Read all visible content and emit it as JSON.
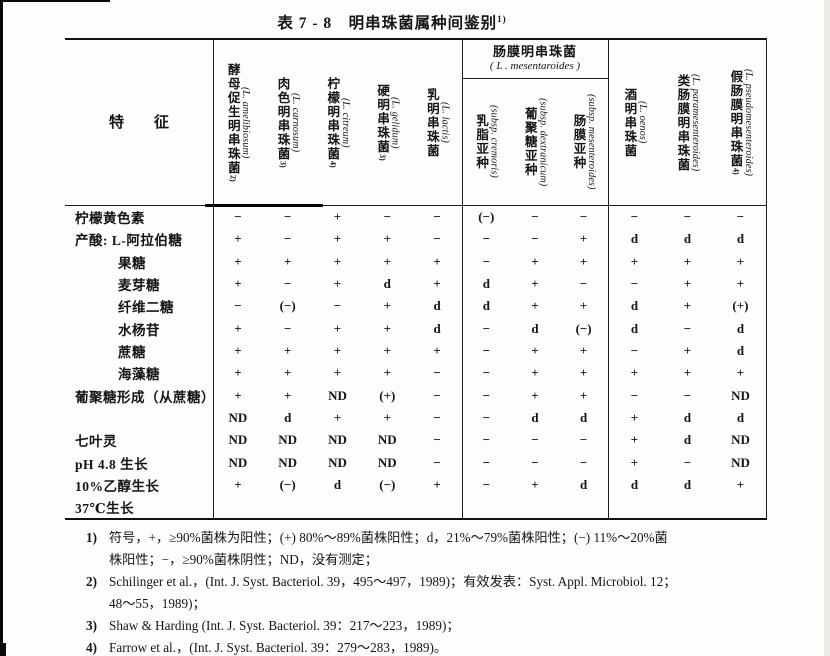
{
  "title": {
    "text": "表 7 - 8　明串珠菌属种间鉴别",
    "superscript": "1)"
  },
  "table": {
    "feature_header": "特　　征",
    "group_header": {
      "cn": "肠膜明串珠菌",
      "latin": "( L .  mesentaroides )"
    },
    "columns": [
      {
        "cn": "酵母促生明串珠菌",
        "sup": "2)",
        "latin": "(L. amelibiosum)",
        "group": false
      },
      {
        "cn": "肉色明串珠菌",
        "sup": "3)",
        "latin": "(L. carnosum)",
        "group": false
      },
      {
        "cn": "柠檬明串珠菌",
        "sup": "4)",
        "latin": "(L. citreum)",
        "group": false
      },
      {
        "cn": "硬明串珠菌",
        "sup": "3)",
        "latin": "(L. gelidum)",
        "group": false
      },
      {
        "cn": "乳明串珠菌",
        "sup": "",
        "latin": "(L. lactis)",
        "group": false
      },
      {
        "cn": "乳脂亚种",
        "sup": "",
        "latin": "(subsp. cremoris)",
        "group": true
      },
      {
        "cn": "葡聚糖亚种",
        "sup": "",
        "latin": "(subsp. dextranicum)",
        "group": true
      },
      {
        "cn": "肠膜亚种",
        "sup": "",
        "latin": "(subsp. mesenteroides)",
        "group": true
      },
      {
        "cn": "酒明串珠菌",
        "sup": "",
        "latin": "(L. oenos)",
        "group": false
      },
      {
        "cn": "类肠膜明串珠菌",
        "sup": "",
        "latin": "(L. paramesenteroides)",
        "group": false
      },
      {
        "cn": "假肠膜明串珠菌",
        "sup": "4)",
        "latin": "(L. pseudomesenteroides)",
        "group": false
      }
    ],
    "rows": [
      {
        "label": "柠檬黄色素",
        "indent": 0,
        "values": [
          "−",
          "−",
          "+",
          "−",
          "−",
          "(−)",
          "−",
          "−",
          "−",
          "−",
          "−"
        ]
      },
      {
        "label": "产酸: L-阿拉伯糖",
        "indent": 0,
        "values": [
          "+",
          "−",
          "+",
          "+",
          "−",
          "−",
          "−",
          "+",
          "d",
          "d",
          "d"
        ]
      },
      {
        "label": "果糖",
        "indent": 1,
        "values": [
          "+",
          "+",
          "+",
          "+",
          "+",
          "−",
          "+",
          "+",
          "+",
          "+",
          "+"
        ]
      },
      {
        "label": "麦芽糖",
        "indent": 1,
        "values": [
          "+",
          "−",
          "+",
          "d",
          "+",
          "d",
          "+",
          "−",
          "−",
          "+",
          "+"
        ]
      },
      {
        "label": "纤维二糖",
        "indent": 1,
        "values": [
          "−",
          "(−)",
          "−",
          "+",
          "d",
          "d",
          "+",
          "+",
          "d",
          "+",
          "(+)"
        ]
      },
      {
        "label": "水杨苷",
        "indent": 1,
        "values": [
          "+",
          "−",
          "+",
          "+",
          "d",
          "−",
          "d",
          "(−)",
          "d",
          "−",
          "d"
        ]
      },
      {
        "label": "蔗糖",
        "indent": 1,
        "values": [
          "+",
          "+",
          "+",
          "+",
          "+",
          "−",
          "+",
          "+",
          "−",
          "+",
          "d"
        ]
      },
      {
        "label": "海藻糖",
        "indent": 1,
        "values": [
          "+",
          "+",
          "+",
          "+",
          "−",
          "−",
          "+",
          "+",
          "+",
          "+",
          "+"
        ]
      },
      {
        "label": "葡聚糖形成（从蔗糖）",
        "indent": 0,
        "values": [
          "+",
          "+",
          "ND",
          "(+)",
          "−",
          "−",
          "+",
          "+",
          "−",
          "−",
          "ND"
        ]
      },
      {
        "label": "",
        "indent": 0,
        "values": [
          "ND",
          "d",
          "+",
          "+",
          "−",
          "−",
          "d",
          "d",
          "+",
          "d",
          "d"
        ]
      },
      {
        "label": "七叶灵",
        "indent": 0,
        "values": [
          "ND",
          "ND",
          "ND",
          "ND",
          "−",
          "−",
          "−",
          "−",
          "+",
          "d",
          "ND"
        ]
      },
      {
        "label": "pH 4.8 生长",
        "indent": 0,
        "values": [
          "ND",
          "ND",
          "ND",
          "ND",
          "−",
          "−",
          "−",
          "−",
          "+",
          "−",
          "ND"
        ]
      },
      {
        "label": "10%乙醇生长",
        "indent": 0,
        "values": [
          "+",
          "(−)",
          "d",
          "(−)",
          "+",
          "−",
          "+",
          "d",
          "d",
          "d",
          "+"
        ]
      },
      {
        "label": "37℃生长",
        "indent": 0,
        "values": [
          "",
          "",
          "",
          "",
          "",
          "",
          "",
          "",
          "",
          "",
          ""
        ]
      }
    ]
  },
  "footnotes": [
    {
      "num": "1)",
      "lines": [
        "符号，+，≥90%菌株为阳性；(+) 80%～89%菌株阳性；d，21%～79%菌株阳性；(−) 11%～20%菌",
        "株阳性；−，≥90%菌株阴性；ND，没有测定；"
      ]
    },
    {
      "num": "2)",
      "lines": [
        "Schilinger et al.，(Int.  J.  Syst.  Bacteriol.  39，495～497，1989)；有效发表：Syst.  Appl.  Microbiol.  12；",
        "48～55，1989)；"
      ]
    },
    {
      "num": "3)",
      "lines": [
        "Shaw & Harding (Int.  J.  Syst.  Bacteriol.  39：217～223，1989)；"
      ]
    },
    {
      "num": "4)",
      "lines": [
        "Farrow et al.，(Int.  J.  Syst.  Bacteriol.  39：279～283，1989)。"
      ]
    }
  ]
}
